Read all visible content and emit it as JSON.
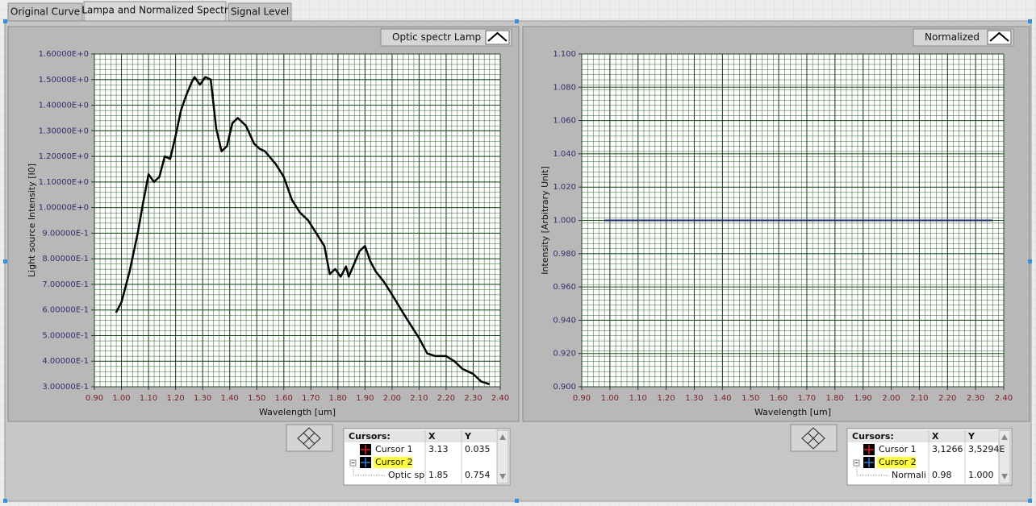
{
  "tabs": [
    "Original Curve",
    "Lampa and Normalized Spectr",
    "Signal Level"
  ],
  "chart_data": [
    {
      "type": "line",
      "xlabel": "Wavelength [um]",
      "ylabel": "Light source Intensity [I0]",
      "xlim": [
        0.9,
        2.4
      ],
      "xticks": [
        {
          "value": 0.9,
          "label": "0.90"
        },
        {
          "value": 1.0,
          "label": "1.00"
        },
        {
          "value": 1.1,
          "label": "1.10"
        },
        {
          "value": 1.2,
          "label": "1.20"
        },
        {
          "value": 1.3,
          "label": "1.30"
        },
        {
          "value": 1.4,
          "label": "1.40"
        },
        {
          "value": 1.5,
          "label": "1.50"
        },
        {
          "value": 1.6,
          "label": "1.60"
        },
        {
          "value": 1.7,
          "label": "1.70"
        },
        {
          "value": 1.8,
          "label": "1.80"
        },
        {
          "value": 1.9,
          "label": "1.90"
        },
        {
          "value": 2.0,
          "label": "2.00"
        },
        {
          "value": 2.1,
          "label": "2.10"
        },
        {
          "value": 2.2,
          "label": "2.20"
        },
        {
          "value": 2.3,
          "label": "2.30"
        },
        {
          "value": 2.4,
          "label": "2.40"
        }
      ],
      "ylim": [
        0.3,
        1.6
      ],
      "yticks": [
        {
          "value": 0.3,
          "label": "3.00000E-1"
        },
        {
          "value": 0.4,
          "label": "4.00000E-1"
        },
        {
          "value": 0.5,
          "label": "5.00000E-1"
        },
        {
          "value": 0.6,
          "label": "6.00000E-1"
        },
        {
          "value": 0.7,
          "label": "7.00000E-1"
        },
        {
          "value": 0.8,
          "label": "8.00000E-1"
        },
        {
          "value": 0.9,
          "label": "9.00000E-1"
        },
        {
          "value": 1.0,
          "label": "1.00000E+0"
        },
        {
          "value": 1.1,
          "label": "1.10000E+0"
        },
        {
          "value": 1.2,
          "label": "1.20000E+0"
        },
        {
          "value": 1.3,
          "label": "1.30000E+0"
        },
        {
          "value": 1.4,
          "label": "1.40000E+0"
        },
        {
          "value": 1.5,
          "label": "1.50000E+0"
        },
        {
          "value": 1.6,
          "label": "1.60000E+0"
        }
      ],
      "grid": true,
      "series": [
        {
          "name": "Optic spectr Lamp",
          "color": "#000000",
          "x": [
            0.98,
            1.0,
            1.03,
            1.06,
            1.08,
            1.1,
            1.12,
            1.14,
            1.16,
            1.18,
            1.2,
            1.22,
            1.24,
            1.26,
            1.27,
            1.29,
            1.31,
            1.33,
            1.35,
            1.37,
            1.39,
            1.41,
            1.43,
            1.46,
            1.49,
            1.51,
            1.53,
            1.57,
            1.6,
            1.63,
            1.66,
            1.69,
            1.72,
            1.75,
            1.77,
            1.79,
            1.81,
            1.83,
            1.84,
            1.86,
            1.88,
            1.9,
            1.92,
            1.94,
            1.97,
            2.0,
            2.04,
            2.07,
            2.1,
            2.13,
            2.16,
            2.2,
            2.23,
            2.26,
            2.3,
            2.33,
            2.36
          ],
          "values": [
            0.59,
            0.63,
            0.75,
            0.9,
            1.02,
            1.13,
            1.1,
            1.12,
            1.2,
            1.19,
            1.28,
            1.38,
            1.44,
            1.49,
            1.51,
            1.48,
            1.51,
            1.5,
            1.31,
            1.22,
            1.24,
            1.33,
            1.35,
            1.32,
            1.25,
            1.23,
            1.22,
            1.17,
            1.12,
            1.03,
            0.98,
            0.95,
            0.9,
            0.85,
            0.74,
            0.76,
            0.73,
            0.77,
            0.73,
            0.78,
            0.83,
            0.85,
            0.79,
            0.75,
            0.71,
            0.66,
            0.59,
            0.54,
            0.49,
            0.43,
            0.42,
            0.42,
            0.4,
            0.37,
            0.35,
            0.32,
            0.31
          ]
        }
      ]
    },
    {
      "type": "line",
      "xlabel": "Wavelength [um]",
      "ylabel": "Intensity [Arbitrary Unit]",
      "xlim": [
        0.9,
        2.4
      ],
      "xticks": [
        {
          "value": 0.9,
          "label": "0.90"
        },
        {
          "value": 1.0,
          "label": "1.00"
        },
        {
          "value": 1.1,
          "label": "1.10"
        },
        {
          "value": 1.2,
          "label": "1.20"
        },
        {
          "value": 1.3,
          "label": "1.30"
        },
        {
          "value": 1.4,
          "label": "1.40"
        },
        {
          "value": 1.5,
          "label": "1.50"
        },
        {
          "value": 1.6,
          "label": "1.60"
        },
        {
          "value": 1.7,
          "label": "1.70"
        },
        {
          "value": 1.8,
          "label": "1.80"
        },
        {
          "value": 1.9,
          "label": "1.90"
        },
        {
          "value": 2.0,
          "label": "2.00"
        },
        {
          "value": 2.1,
          "label": "2.10"
        },
        {
          "value": 2.2,
          "label": "2.20"
        },
        {
          "value": 2.3,
          "label": "2.30"
        },
        {
          "value": 2.4,
          "label": "2.40"
        }
      ],
      "ylim": [
        0.9,
        1.1
      ],
      "yticks": [
        {
          "value": 0.9,
          "label": "0.900"
        },
        {
          "value": 0.92,
          "label": "0.920"
        },
        {
          "value": 0.94,
          "label": "0.940"
        },
        {
          "value": 0.96,
          "label": "0.960"
        },
        {
          "value": 0.98,
          "label": "0.980"
        },
        {
          "value": 1.0,
          "label": "1.000"
        },
        {
          "value": 1.02,
          "label": "1.020"
        },
        {
          "value": 1.04,
          "label": "1.040"
        },
        {
          "value": 1.06,
          "label": "1.060"
        },
        {
          "value": 1.08,
          "label": "1.080"
        },
        {
          "value": 1.1,
          "label": "1.100"
        }
      ],
      "grid": true,
      "series": [
        {
          "name": "Normalized",
          "color": "#1f2a6b",
          "x": [
            0.98,
            2.36
          ],
          "values": [
            1.0,
            1.0
          ]
        }
      ]
    }
  ],
  "cursor_tables": [
    {
      "header": [
        "Cursors:",
        "X",
        "Y"
      ],
      "rows": [
        {
          "name": "Cursor 1",
          "x": "3.13",
          "y": "0.035"
        },
        {
          "name": "Cursor 2"
        },
        {
          "name": "Optic sp",
          "x": "1.85",
          "y": "0.754"
        }
      ]
    },
    {
      "header": [
        "Cursors:",
        "X",
        "Y"
      ],
      "rows": [
        {
          "name": "Cursor 1",
          "x": "3,1266",
          "y": "3,5294E"
        },
        {
          "name": "Cursor 2"
        },
        {
          "name": "Normali",
          "x": "0.98",
          "y": "1.000"
        }
      ]
    }
  ]
}
